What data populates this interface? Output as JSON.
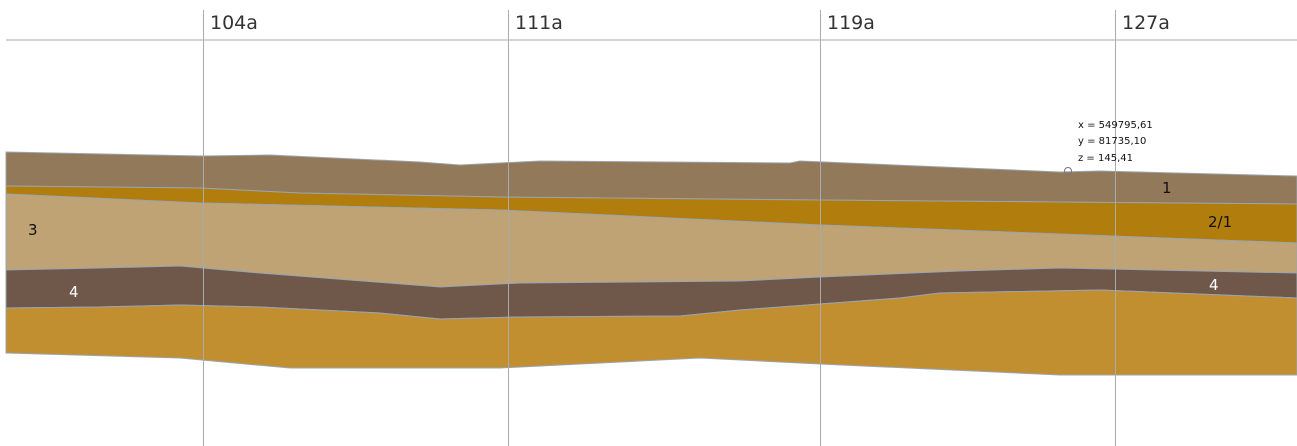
{
  "boreholes": [
    "104a",
    "111a",
    "119a",
    "127a"
  ],
  "layers": [
    "1",
    "2/1",
    "3",
    "4",
    "4"
  ],
  "tooltip": {
    "x": "x = 549795,61",
    "y": "y = 81735,10",
    "z": "z = 145,41"
  }
}
